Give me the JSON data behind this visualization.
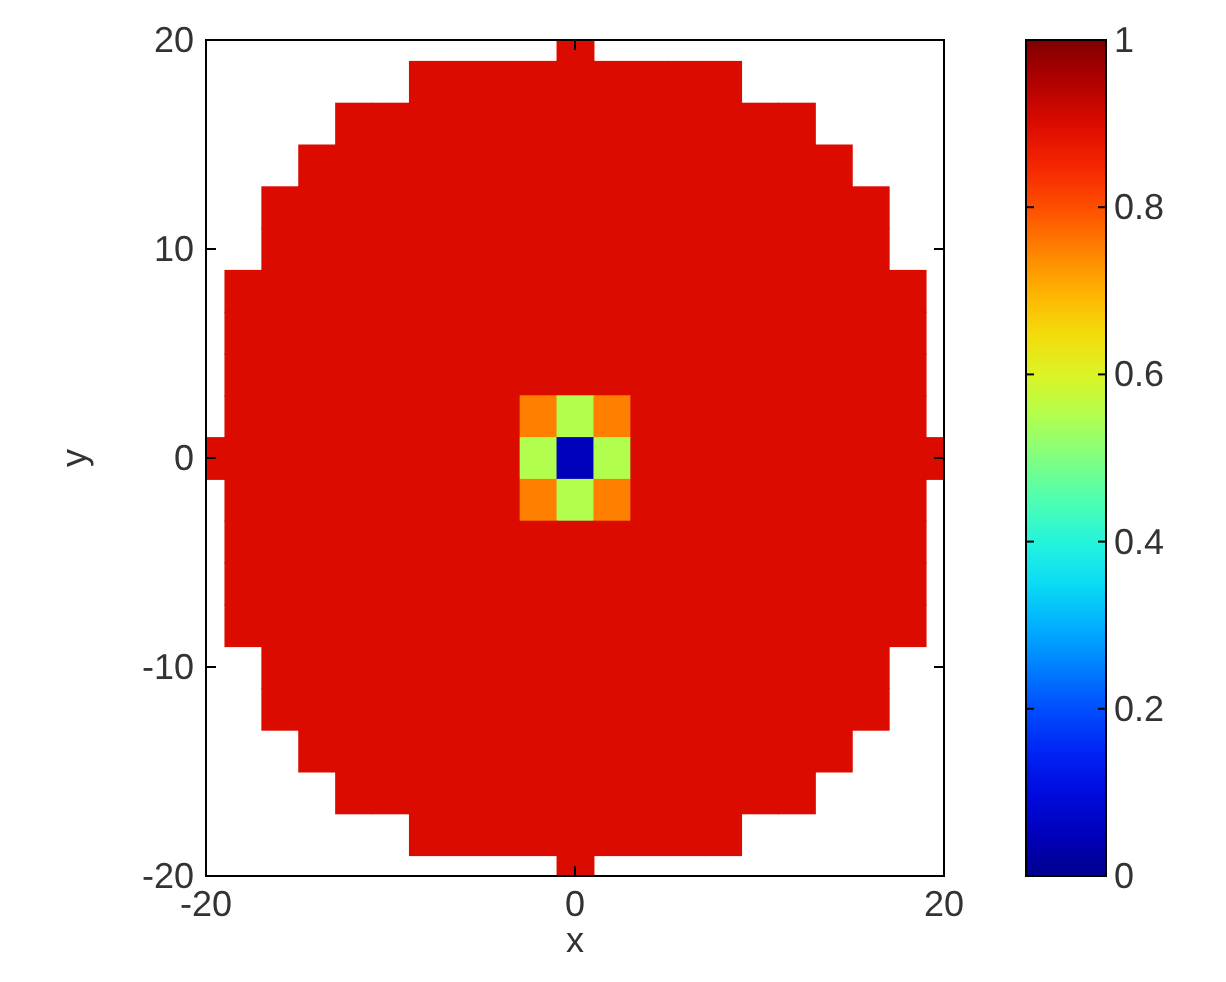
{
  "chart_data": {
    "type": "heatmap",
    "xlabel": "x",
    "ylabel": "y",
    "xlim": [
      -20,
      20
    ],
    "ylim": [
      -20,
      20
    ],
    "xticks": [
      -20,
      0,
      20
    ],
    "yticks": [
      -20,
      -10,
      0,
      10,
      20
    ],
    "clim": [
      0,
      1
    ],
    "cticks": [
      0,
      0.2,
      0.4,
      0.6,
      0.8,
      1
    ],
    "grid": false,
    "cells": [
      [
        null,
        null,
        null,
        null,
        null,
        null,
        null,
        null,
        null,
        null,
        0.9,
        null,
        null,
        null,
        null,
        null,
        null,
        null,
        null,
        null,
        null
      ],
      [
        null,
        null,
        null,
        null,
        null,
        null,
        0.9,
        0.9,
        0.9,
        0.9,
        0.9,
        0.9,
        0.9,
        0.9,
        0.9,
        null,
        null,
        null,
        null,
        null,
        null
      ],
      [
        null,
        null,
        null,
        null,
        0.9,
        0.9,
        0.9,
        0.9,
        0.9,
        0.9,
        0.9,
        0.9,
        0.9,
        0.9,
        0.9,
        0.9,
        0.9,
        null,
        null,
        null,
        null
      ],
      [
        null,
        null,
        null,
        0.9,
        0.9,
        0.9,
        0.9,
        0.9,
        0.9,
        0.9,
        0.9,
        0.9,
        0.9,
        0.9,
        0.9,
        0.9,
        0.9,
        0.9,
        null,
        null,
        null
      ],
      [
        null,
        null,
        0.9,
        0.9,
        0.9,
        0.9,
        0.9,
        0.9,
        0.9,
        0.9,
        0.9,
        0.9,
        0.9,
        0.9,
        0.9,
        0.9,
        0.9,
        0.9,
        0.9,
        null,
        null
      ],
      [
        null,
        null,
        0.9,
        0.9,
        0.9,
        0.9,
        0.9,
        0.9,
        0.9,
        0.9,
        0.9,
        0.9,
        0.9,
        0.9,
        0.9,
        0.9,
        0.9,
        0.9,
        0.9,
        null,
        null
      ],
      [
        null,
        0.9,
        0.9,
        0.9,
        0.9,
        0.9,
        0.9,
        0.9,
        0.9,
        0.9,
        0.9,
        0.9,
        0.9,
        0.9,
        0.9,
        0.9,
        0.9,
        0.9,
        0.9,
        0.9,
        null
      ],
      [
        null,
        0.9,
        0.9,
        0.9,
        0.9,
        0.9,
        0.9,
        0.9,
        0.9,
        0.9,
        0.9,
        0.9,
        0.9,
        0.9,
        0.9,
        0.9,
        0.9,
        0.9,
        0.9,
        0.9,
        null
      ],
      [
        null,
        0.9,
        0.9,
        0.9,
        0.9,
        0.9,
        0.9,
        0.9,
        0.9,
        0.9,
        0.9,
        0.9,
        0.9,
        0.9,
        0.9,
        0.9,
        0.9,
        0.9,
        0.9,
        0.9,
        null
      ],
      [
        null,
        0.9,
        0.9,
        0.9,
        0.9,
        0.9,
        0.9,
        0.9,
        0.9,
        0.75,
        0.55,
        0.75,
        0.9,
        0.9,
        0.9,
        0.9,
        0.9,
        0.9,
        0.9,
        0.9,
        null
      ],
      [
        0.9,
        0.9,
        0.9,
        0.9,
        0.9,
        0.9,
        0.9,
        0.9,
        0.9,
        0.55,
        0.05,
        0.55,
        0.9,
        0.9,
        0.9,
        0.9,
        0.9,
        0.9,
        0.9,
        0.9,
        0.9
      ],
      [
        null,
        0.9,
        0.9,
        0.9,
        0.9,
        0.9,
        0.9,
        0.9,
        0.9,
        0.75,
        0.55,
        0.75,
        0.9,
        0.9,
        0.9,
        0.9,
        0.9,
        0.9,
        0.9,
        0.9,
        null
      ],
      [
        null,
        0.9,
        0.9,
        0.9,
        0.9,
        0.9,
        0.9,
        0.9,
        0.9,
        0.9,
        0.9,
        0.9,
        0.9,
        0.9,
        0.9,
        0.9,
        0.9,
        0.9,
        0.9,
        0.9,
        null
      ],
      [
        null,
        0.9,
        0.9,
        0.9,
        0.9,
        0.9,
        0.9,
        0.9,
        0.9,
        0.9,
        0.9,
        0.9,
        0.9,
        0.9,
        0.9,
        0.9,
        0.9,
        0.9,
        0.9,
        0.9,
        null
      ],
      [
        null,
        0.9,
        0.9,
        0.9,
        0.9,
        0.9,
        0.9,
        0.9,
        0.9,
        0.9,
        0.9,
        0.9,
        0.9,
        0.9,
        0.9,
        0.9,
        0.9,
        0.9,
        0.9,
        0.9,
        null
      ],
      [
        null,
        null,
        0.9,
        0.9,
        0.9,
        0.9,
        0.9,
        0.9,
        0.9,
        0.9,
        0.9,
        0.9,
        0.9,
        0.9,
        0.9,
        0.9,
        0.9,
        0.9,
        0.9,
        null,
        null
      ],
      [
        null,
        null,
        0.9,
        0.9,
        0.9,
        0.9,
        0.9,
        0.9,
        0.9,
        0.9,
        0.9,
        0.9,
        0.9,
        0.9,
        0.9,
        0.9,
        0.9,
        0.9,
        0.9,
        null,
        null
      ],
      [
        null,
        null,
        null,
        0.9,
        0.9,
        0.9,
        0.9,
        0.9,
        0.9,
        0.9,
        0.9,
        0.9,
        0.9,
        0.9,
        0.9,
        0.9,
        0.9,
        0.9,
        null,
        null,
        null
      ],
      [
        null,
        null,
        null,
        null,
        0.9,
        0.9,
        0.9,
        0.9,
        0.9,
        0.9,
        0.9,
        0.9,
        0.9,
        0.9,
        0.9,
        0.9,
        0.9,
        null,
        null,
        null,
        null
      ],
      [
        null,
        null,
        null,
        null,
        null,
        null,
        0.9,
        0.9,
        0.9,
        0.9,
        0.9,
        0.9,
        0.9,
        0.9,
        0.9,
        null,
        null,
        null,
        null,
        null,
        null
      ],
      [
        null,
        null,
        null,
        null,
        null,
        null,
        null,
        null,
        null,
        null,
        0.9,
        null,
        null,
        null,
        null,
        null,
        null,
        null,
        null,
        null,
        null
      ]
    ]
  }
}
